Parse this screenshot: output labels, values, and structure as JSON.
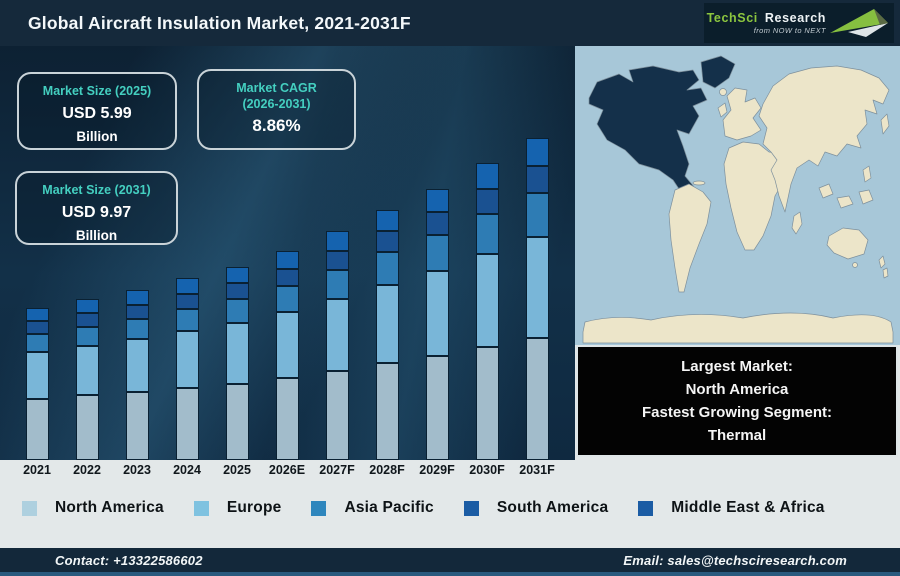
{
  "header": {
    "title": "Global Aircraft Insulation Market, 2021-2031F",
    "logo": {
      "brand_primary": "TechSci",
      "brand_secondary": "Research",
      "tagline": "from NOW to NEXT"
    }
  },
  "callouts": {
    "size_2025": {
      "title": "Market Size (2025)",
      "value": "USD 5.99",
      "unit": "Billion"
    },
    "cagr": {
      "title_line1": "Market CAGR",
      "title_line2": "(2026-2031)",
      "value": "8.86%"
    },
    "size_2031": {
      "title": "Market Size (2031)",
      "value": "USD 9.97",
      "unit": "Billion"
    }
  },
  "chart_data": {
    "type": "bar",
    "stacked": true,
    "unit": "USD Billion",
    "categories": [
      "2021",
      "2022",
      "2023",
      "2024",
      "2025",
      "2026E",
      "2027F",
      "2028F",
      "2029F",
      "2030F",
      "2031F"
    ],
    "series": [
      {
        "name": "North America",
        "color": "#a2bccb",
        "values": [
          1.9,
          2.0,
          2.1,
          2.22,
          2.36,
          2.55,
          2.76,
          2.99,
          3.23,
          3.5,
          3.79
        ]
      },
      {
        "name": "Europe",
        "color": "#79b6d8",
        "values": [
          1.45,
          1.53,
          1.63,
          1.75,
          1.88,
          2.05,
          2.23,
          2.43,
          2.64,
          2.87,
          3.12
        ]
      },
      {
        "name": "Asia Pacific",
        "color": "#2e7cb4",
        "values": [
          0.55,
          0.58,
          0.63,
          0.68,
          0.74,
          0.82,
          0.91,
          1.01,
          1.12,
          1.24,
          1.36
        ]
      },
      {
        "name": "South America",
        "color": "#1a5191",
        "values": [
          0.4,
          0.42,
          0.44,
          0.47,
          0.5,
          0.54,
          0.59,
          0.64,
          0.7,
          0.76,
          0.83
        ]
      },
      {
        "name": "Middle East & Africa",
        "color": "#1563af",
        "values": [
          0.4,
          0.42,
          0.45,
          0.48,
          0.51,
          0.56,
          0.61,
          0.66,
          0.72,
          0.79,
          0.87
        ]
      }
    ],
    "totals": [
      4.7,
      4.95,
      5.25,
      5.6,
      5.99,
      6.52,
      7.1,
      7.73,
      8.41,
      9.16,
      9.97
    ],
    "ylim": [
      0,
      10
    ],
    "grid": false,
    "legend_position": "bottom",
    "notes": "Totals anchored to labeled values: 2025 = USD 5.99 Bn, 2031 = USD 9.97 Bn, CAGR 2026-2031 = 8.86%"
  },
  "legend": [
    {
      "label": "North America",
      "color": "#aed0df"
    },
    {
      "label": "Europe",
      "color": "#7fc2e0"
    },
    {
      "label": "Asia Pacific",
      "color": "#2e86bd"
    },
    {
      "label": "South America",
      "color": "#1b5ca4"
    },
    {
      "label": "Middle East & Africa",
      "color": "#1b5ca4"
    }
  ],
  "map_panel": {
    "highlighted_region": "North America",
    "colors": {
      "ocean": "#a7c7d8",
      "land": "#ece5c9",
      "highlight": "#14304a"
    },
    "info_lines": [
      "Largest Market:",
      "North America",
      "Fastest Growing Segment:",
      "Thermal"
    ]
  },
  "footer": {
    "contact": "Contact: +13322586602",
    "email": "Email: sales@techsciresearch.com"
  }
}
